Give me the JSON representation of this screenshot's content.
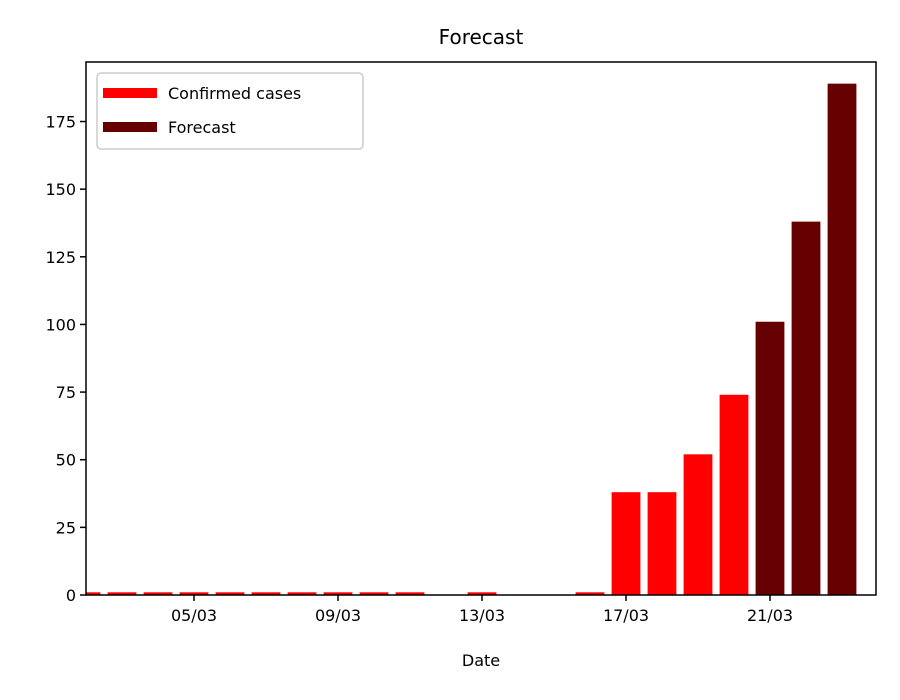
{
  "chart_data": {
    "type": "bar",
    "title": "Forecast",
    "xlabel": "Date",
    "ylabel": "",
    "ylim": [
      0,
      197
    ],
    "y_ticks": [
      0,
      25,
      50,
      75,
      100,
      125,
      150,
      175
    ],
    "x_ticks": [
      "05/03",
      "09/03",
      "13/03",
      "17/03",
      "21/03"
    ],
    "categories": [
      "02/03",
      "03/03",
      "04/03",
      "05/03",
      "06/03",
      "07/03",
      "08/03",
      "09/03",
      "10/03",
      "11/03",
      "12/03",
      "13/03",
      "14/03",
      "15/03",
      "16/03",
      "17/03",
      "18/03",
      "19/03",
      "20/03",
      "21/03",
      "22/03",
      "23/03"
    ],
    "grid": false,
    "legend_position": "top-left",
    "series": [
      {
        "name": "Confirmed cases",
        "color": "#ff0000",
        "values": [
          1,
          1,
          1,
          1,
          1,
          1,
          1,
          1,
          1,
          1,
          0,
          1,
          0,
          0,
          1,
          38,
          38,
          52,
          74,
          0,
          0,
          0
        ]
      },
      {
        "name": "Forecast",
        "color": "#660000",
        "values": [
          0,
          0,
          0,
          0,
          0,
          0,
          0,
          0,
          0,
          0,
          0,
          0,
          0,
          0,
          0,
          0,
          0,
          0,
          0,
          101,
          138,
          189
        ]
      }
    ]
  }
}
